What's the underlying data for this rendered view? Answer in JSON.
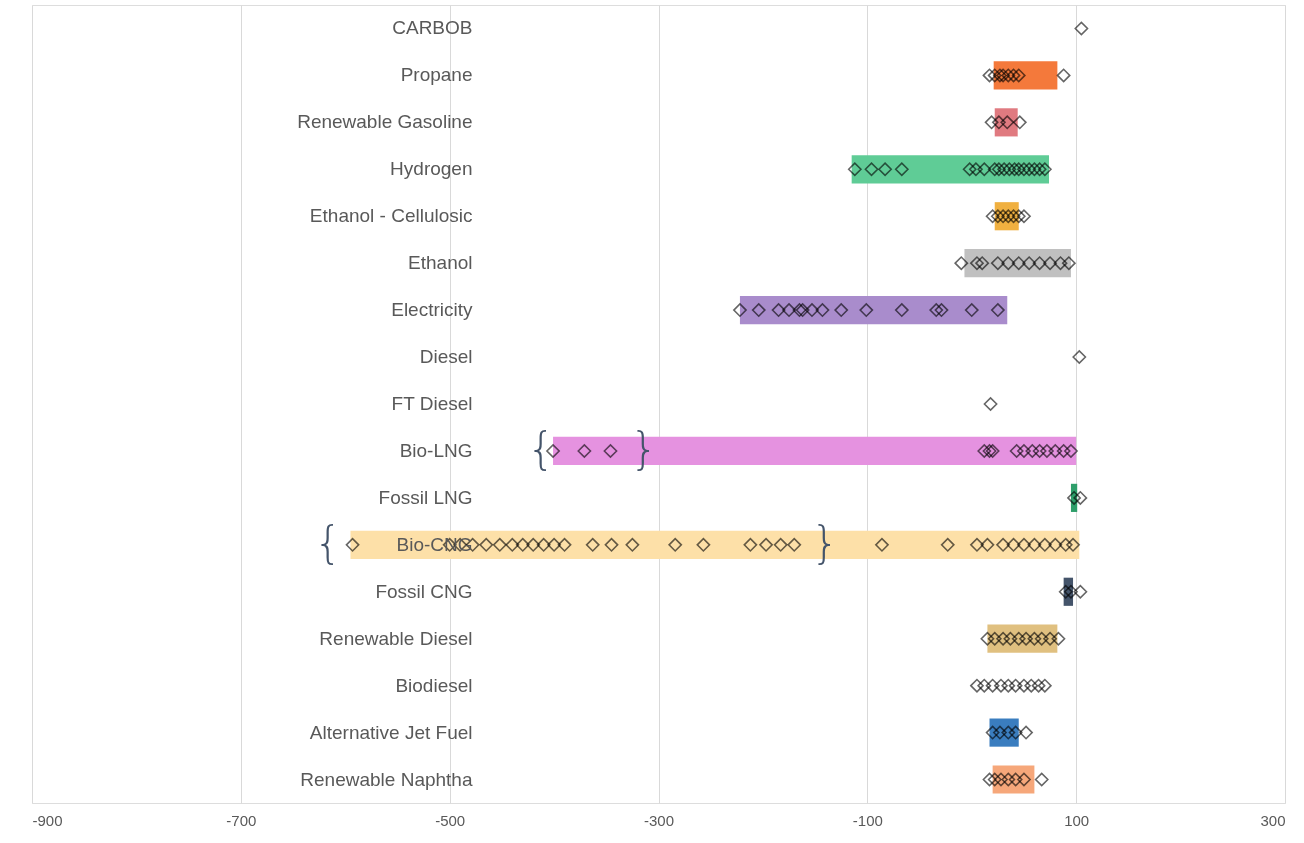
{
  "chart_data": {
    "type": "bar",
    "orientation": "horizontal",
    "categories": [
      "CARBOB",
      "Propane",
      "Renewable Gasoline",
      "Hydrogen",
      "Ethanol - Cellulosic",
      "Ethanol",
      "Electricity",
      "Diesel",
      "FT Diesel",
      "Bio-LNG",
      "Fossil LNG",
      "Bio-CNG",
      "Fossil CNG",
      "Renewable Diesel",
      "Biodiesel",
      "Alternative Jet Fuel",
      "Renewable Naphtha"
    ],
    "xlim": [
      -900,
      300
    ],
    "xticks": [
      -900,
      -700,
      -500,
      -300,
      -100,
      100,
      300
    ],
    "grid": "x",
    "marker": "diamond",
    "series": [
      {
        "base": [
          null,
          21,
          22,
          -115,
          22,
          -7,
          -222,
          null,
          null,
          -401,
          95,
          -595,
          88,
          15,
          null,
          17,
          20
        ],
        "values": [
          null,
          61,
          22,
          189,
          23,
          102,
          256,
          null,
          null,
          501,
          6,
          698,
          9,
          67,
          null,
          28,
          40
        ],
        "colors": [
          null,
          "#f4793b",
          "#e07a80",
          "#5fcc96",
          "#f0b040",
          "#c0c0c0",
          "#a98ccc",
          null,
          null,
          "#e592e0",
          "#2e9e6a",
          "#fde0a8",
          "#44546a",
          "#e0c080",
          null,
          "#3a7dbf",
          "#f6a77a"
        ]
      },
      {
        "type": "scatter",
        "color": "#000000",
        "x": [
          "CARBOB",
          "Propane",
          "Propane",
          "Propane",
          "Propane",
          "Propane",
          "Propane",
          "Propane",
          "Propane",
          "Renewable Gasoline",
          "Renewable Gasoline",
          "Renewable Gasoline",
          "Renewable Gasoline",
          "Hydrogen",
          "Hydrogen",
          "Hydrogen",
          "Hydrogen",
          "Hydrogen",
          "Hydrogen",
          "Hydrogen",
          "Hydrogen",
          "Hydrogen",
          "Hydrogen",
          "Hydrogen",
          "Hydrogen",
          "Hydrogen",
          "Hydrogen",
          "Hydrogen",
          "Hydrogen",
          "Hydrogen",
          "Hydrogen",
          "Ethanol - Cellulosic",
          "Ethanol - Cellulosic",
          "Ethanol - Cellulosic",
          "Ethanol - Cellulosic",
          "Ethanol - Cellulosic",
          "Ethanol - Cellulosic",
          "Ethanol - Cellulosic",
          "Ethanol",
          "Ethanol",
          "Ethanol",
          "Ethanol",
          "Ethanol",
          "Ethanol",
          "Ethanol",
          "Ethanol",
          "Ethanol",
          "Ethanol",
          "Ethanol",
          "Electricity",
          "Electricity",
          "Electricity",
          "Electricity",
          "Electricity",
          "Electricity",
          "Electricity",
          "Electricity",
          "Electricity",
          "Electricity",
          "Electricity",
          "Electricity",
          "Electricity",
          "Electricity",
          "Electricity",
          "Diesel",
          "FT Diesel",
          "Bio-LNG",
          "Bio-LNG",
          "Bio-LNG",
          "Bio-LNG",
          "Bio-LNG",
          "Bio-LNG",
          "Bio-LNG",
          "Bio-LNG",
          "Bio-LNG",
          "Bio-LNG",
          "Bio-LNG",
          "Bio-LNG",
          "Bio-LNG",
          "Bio-LNG",
          "Fossil LNG",
          "Fossil LNG",
          "Bio-CNG",
          "Bio-CNG",
          "Bio-CNG",
          "Bio-CNG",
          "Bio-CNG",
          "Bio-CNG",
          "Bio-CNG",
          "Bio-CNG",
          "Bio-CNG",
          "Bio-CNG",
          "Bio-CNG",
          "Bio-CNG",
          "Bio-CNG",
          "Bio-CNG",
          "Bio-CNG",
          "Bio-CNG",
          "Bio-CNG",
          "Bio-CNG",
          "Bio-CNG",
          "Bio-CNG",
          "Bio-CNG",
          "Bio-CNG",
          "Bio-CNG",
          "Bio-CNG",
          "Bio-CNG",
          "Bio-CNG",
          "Bio-CNG",
          "Bio-CNG",
          "Bio-CNG",
          "Bio-CNG",
          "Bio-CNG",
          "Bio-CNG",
          "Bio-CNG",
          "Fossil CNG",
          "Fossil CNG",
          "Fossil CNG",
          "Renewable Diesel",
          "Renewable Diesel",
          "Renewable Diesel",
          "Renewable Diesel",
          "Renewable Diesel",
          "Renewable Diesel",
          "Renewable Diesel",
          "Renewable Diesel",
          "Renewable Diesel",
          "Renewable Diesel",
          "Biodiesel",
          "Biodiesel",
          "Biodiesel",
          "Biodiesel",
          "Biodiesel",
          "Biodiesel",
          "Biodiesel",
          "Biodiesel",
          "Biodiesel",
          "Biodiesel",
          "Alternative Jet Fuel",
          "Alternative Jet Fuel",
          "Alternative Jet Fuel",
          "Alternative Jet Fuel",
          "Alternative Jet Fuel",
          "Renewable Naphtha",
          "Renewable Naphtha",
          "Renewable Naphtha",
          "Renewable Naphtha",
          "Renewable Naphtha",
          "Renewable Naphtha",
          "Renewable Naphtha"
        ],
        "values": [
          105,
          17,
          22,
          27,
          30,
          35,
          40,
          45,
          88,
          19,
          26,
          34,
          46,
          -112,
          -96,
          -83,
          -67,
          -2,
          4,
          12,
          22,
          26,
          31,
          36,
          41,
          45,
          50,
          55,
          60,
          65,
          70,
          20,
          25,
          30,
          35,
          40,
          45,
          50,
          -10,
          5,
          10,
          25,
          35,
          45,
          55,
          65,
          75,
          85,
          93,
          -222,
          -204,
          -185,
          -175,
          -165,
          -162,
          -153,
          -143,
          -125,
          -101,
          -67,
          -34,
          -29,
          0,
          25,
          103,
          18,
          -401,
          -371,
          -346,
          12,
          17,
          20,
          43,
          50,
          58,
          65,
          72,
          80,
          88,
          95,
          98,
          104,
          -593,
          -500,
          -490,
          -478,
          -465,
          -452,
          -440,
          -430,
          -420,
          -410,
          -400,
          -390,
          -363,
          -345,
          -325,
          -284,
          -257,
          -212,
          -197,
          -183,
          -170,
          -86,
          -23,
          5,
          15,
          30,
          40,
          50,
          60,
          70,
          80,
          90,
          97,
          90,
          95,
          104,
          15,
          22,
          30,
          37,
          45,
          52,
          60,
          67,
          75,
          83,
          5,
          12,
          20,
          28,
          35,
          42,
          50,
          57,
          64,
          70,
          20,
          27,
          35,
          42,
          52,
          17,
          22,
          28,
          35,
          42,
          50,
          67
        ]
      }
    ],
    "annotations": [
      "{",
      "}",
      "{",
      "}"
    ]
  }
}
